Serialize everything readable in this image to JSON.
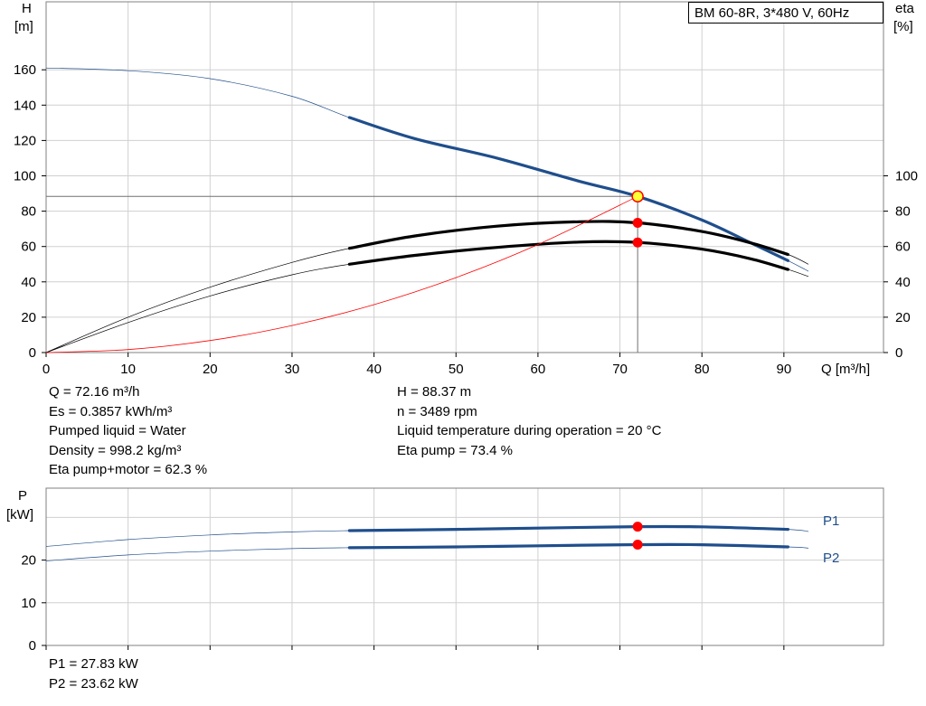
{
  "model": "BM 60-8R, 3*480 V, 60Hz",
  "colors": {
    "head_curve": "#1f4e8c",
    "eff_curve": "#000000",
    "system_curve": "#ff0000",
    "power_curve": "#1f4e8c",
    "op_point": "#ff0000",
    "op_point_fill_head": "#ffff33",
    "grid": "#d0d0d0"
  },
  "labels": {
    "h_axis": [
      "H",
      "[m]"
    ],
    "eta_axis": [
      "eta",
      "[%]"
    ],
    "q_axis": "Q [m³/h]",
    "p_axis": [
      "P",
      "[kW]"
    ],
    "p1": "P1",
    "p2": "P2"
  },
  "info_left": [
    "Q = 72.16 m³/h",
    "Es = 0.3857 kWh/m³",
    "Pumped liquid = Water",
    "Density = 998.2 kg/m³",
    "Eta pump+motor = 62.3 %"
  ],
  "info_right": [
    "H = 88.37 m",
    "n = 3489 rpm",
    "Liquid temperature during operation = 20 °C",
    "Eta pump = 73.4 %"
  ],
  "power_info": [
    "P1 = 27.83 kW",
    "P2 = 23.62 kW"
  ],
  "chart_data": [
    {
      "type": "line",
      "name": "pump-curves",
      "x_ticks": [
        0,
        10,
        20,
        30,
        40,
        50,
        60,
        70,
        80,
        90
      ],
      "h_ticks": [
        0,
        20,
        40,
        60,
        80,
        100,
        120,
        140,
        160
      ],
      "eta_ticks": [
        0,
        20,
        40,
        60,
        80,
        100
      ],
      "xlim": [
        0,
        100
      ],
      "ylim": [
        0,
        200
      ],
      "eta_lim": [
        0,
        200
      ],
      "grid": true,
      "operating_range": [
        37,
        90.5
      ],
      "series": [
        {
          "id": "head",
          "unit": "m",
          "x": [
            0,
            10,
            20,
            30,
            37,
            45,
            55,
            65,
            72.16,
            80,
            86,
            90.5,
            93
          ],
          "y": [
            161,
            159.5,
            155,
            145,
            133,
            121,
            110,
            97,
            88.37,
            75,
            62,
            52,
            46
          ]
        },
        {
          "id": "eta_pump",
          "unit": "%",
          "x": [
            0,
            10,
            20,
            30,
            37,
            45,
            55,
            65,
            72.16,
            80,
            86,
            90.5,
            93
          ],
          "y": [
            0,
            20,
            37,
            51,
            59,
            66,
            71.5,
            74,
            73.4,
            68.5,
            62,
            55.5,
            50
          ]
        },
        {
          "id": "eta_total",
          "unit": "%",
          "x": [
            0,
            10,
            20,
            30,
            37,
            45,
            55,
            65,
            72.16,
            80,
            86,
            90.5,
            93
          ],
          "y": [
            0,
            17,
            32,
            44,
            50,
            55,
            59.5,
            62.5,
            62.3,
            58.5,
            53,
            47,
            43
          ]
        },
        {
          "id": "system",
          "unit": "m",
          "x": [
            0,
            10,
            20,
            30,
            40,
            50,
            60,
            72.16
          ],
          "y": [
            0,
            1.7,
            6.8,
            15.3,
            27.1,
            42.4,
            61.1,
            88.37
          ]
        }
      ],
      "operating_point": {
        "q": 72.16,
        "h": 88.37,
        "eta_pump": 73.4,
        "eta_total": 62.3
      }
    },
    {
      "type": "line",
      "name": "power-curves",
      "x_ticks": [
        0,
        10,
        20,
        30,
        40,
        50,
        60,
        70,
        80,
        90
      ],
      "p_ticks": [
        0,
        10,
        20
      ],
      "xlim": [
        0,
        100
      ],
      "ylim": [
        0,
        36
      ],
      "grid": true,
      "operating_range": [
        37,
        90.5
      ],
      "series": [
        {
          "id": "P1",
          "name": "P1",
          "unit": "kW",
          "x": [
            0,
            10,
            20,
            30,
            37,
            50,
            60,
            72.16,
            80,
            90.5,
            93
          ],
          "y": [
            23.2,
            24.8,
            25.9,
            26.6,
            26.9,
            27.2,
            27.5,
            27.83,
            27.8,
            27.2,
            26.7
          ]
        },
        {
          "id": "P2",
          "name": "P2",
          "unit": "kW",
          "x": [
            0,
            10,
            20,
            30,
            37,
            50,
            60,
            72.16,
            80,
            90.5,
            93
          ],
          "y": [
            19.8,
            21.2,
            22.1,
            22.7,
            22.9,
            23.1,
            23.35,
            23.62,
            23.6,
            23.1,
            22.8
          ]
        }
      ],
      "operating_point": {
        "q": 72.16,
        "p1": 27.83,
        "p2": 23.62
      }
    }
  ]
}
